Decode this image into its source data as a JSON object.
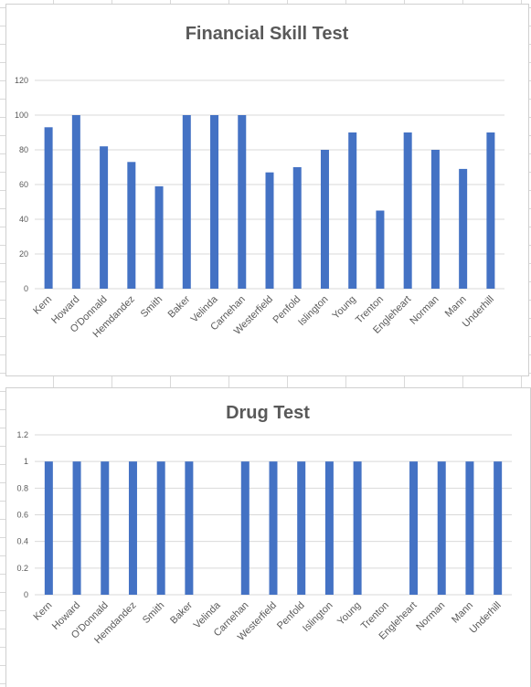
{
  "colors": {
    "bar": "#4472c4",
    "gridline": "#d9d9d9",
    "text": "#595959"
  },
  "chart_data": [
    {
      "type": "bar",
      "title": "Financial Skill Test",
      "categories": [
        "Kern",
        "Howard",
        "O'Donnald",
        "Hemdandez",
        "Smith",
        "Baker",
        "Velinda",
        "Carnehan",
        "Westerfield",
        "Penfold",
        "Islington",
        "Young",
        "Trenton",
        "Engleheart",
        "Norman",
        "Mann",
        "Underhill"
      ],
      "values": [
        93,
        100,
        82,
        73,
        59,
        100,
        100,
        100,
        67,
        70,
        80,
        90,
        45,
        90,
        80,
        69,
        90
      ],
      "yticks": [
        "0",
        "20",
        "40",
        "60",
        "80",
        "100",
        "120"
      ],
      "ylim": [
        0,
        120
      ],
      "grid": true,
      "legend": "none"
    },
    {
      "type": "bar",
      "title": "Drug Test",
      "categories": [
        "Kern",
        "Howard",
        "O'Donnald",
        "Hemdandez",
        "Smith",
        "Baker",
        "Velinda",
        "Carnehan",
        "Westerfield",
        "Penfold",
        "Islington",
        "Young",
        "Trenton",
        "Engleheart",
        "Norman",
        "Mann",
        "Underhill"
      ],
      "values": [
        1,
        1,
        1,
        1,
        1,
        1,
        0,
        1,
        1,
        1,
        1,
        1,
        0,
        1,
        1,
        1,
        1
      ],
      "yticks": [
        "0",
        "0.2",
        "0.4",
        "0.6",
        "0.8",
        "1",
        "1.2"
      ],
      "ylim": [
        0,
        1.2
      ],
      "grid": true,
      "legend": "none"
    }
  ]
}
